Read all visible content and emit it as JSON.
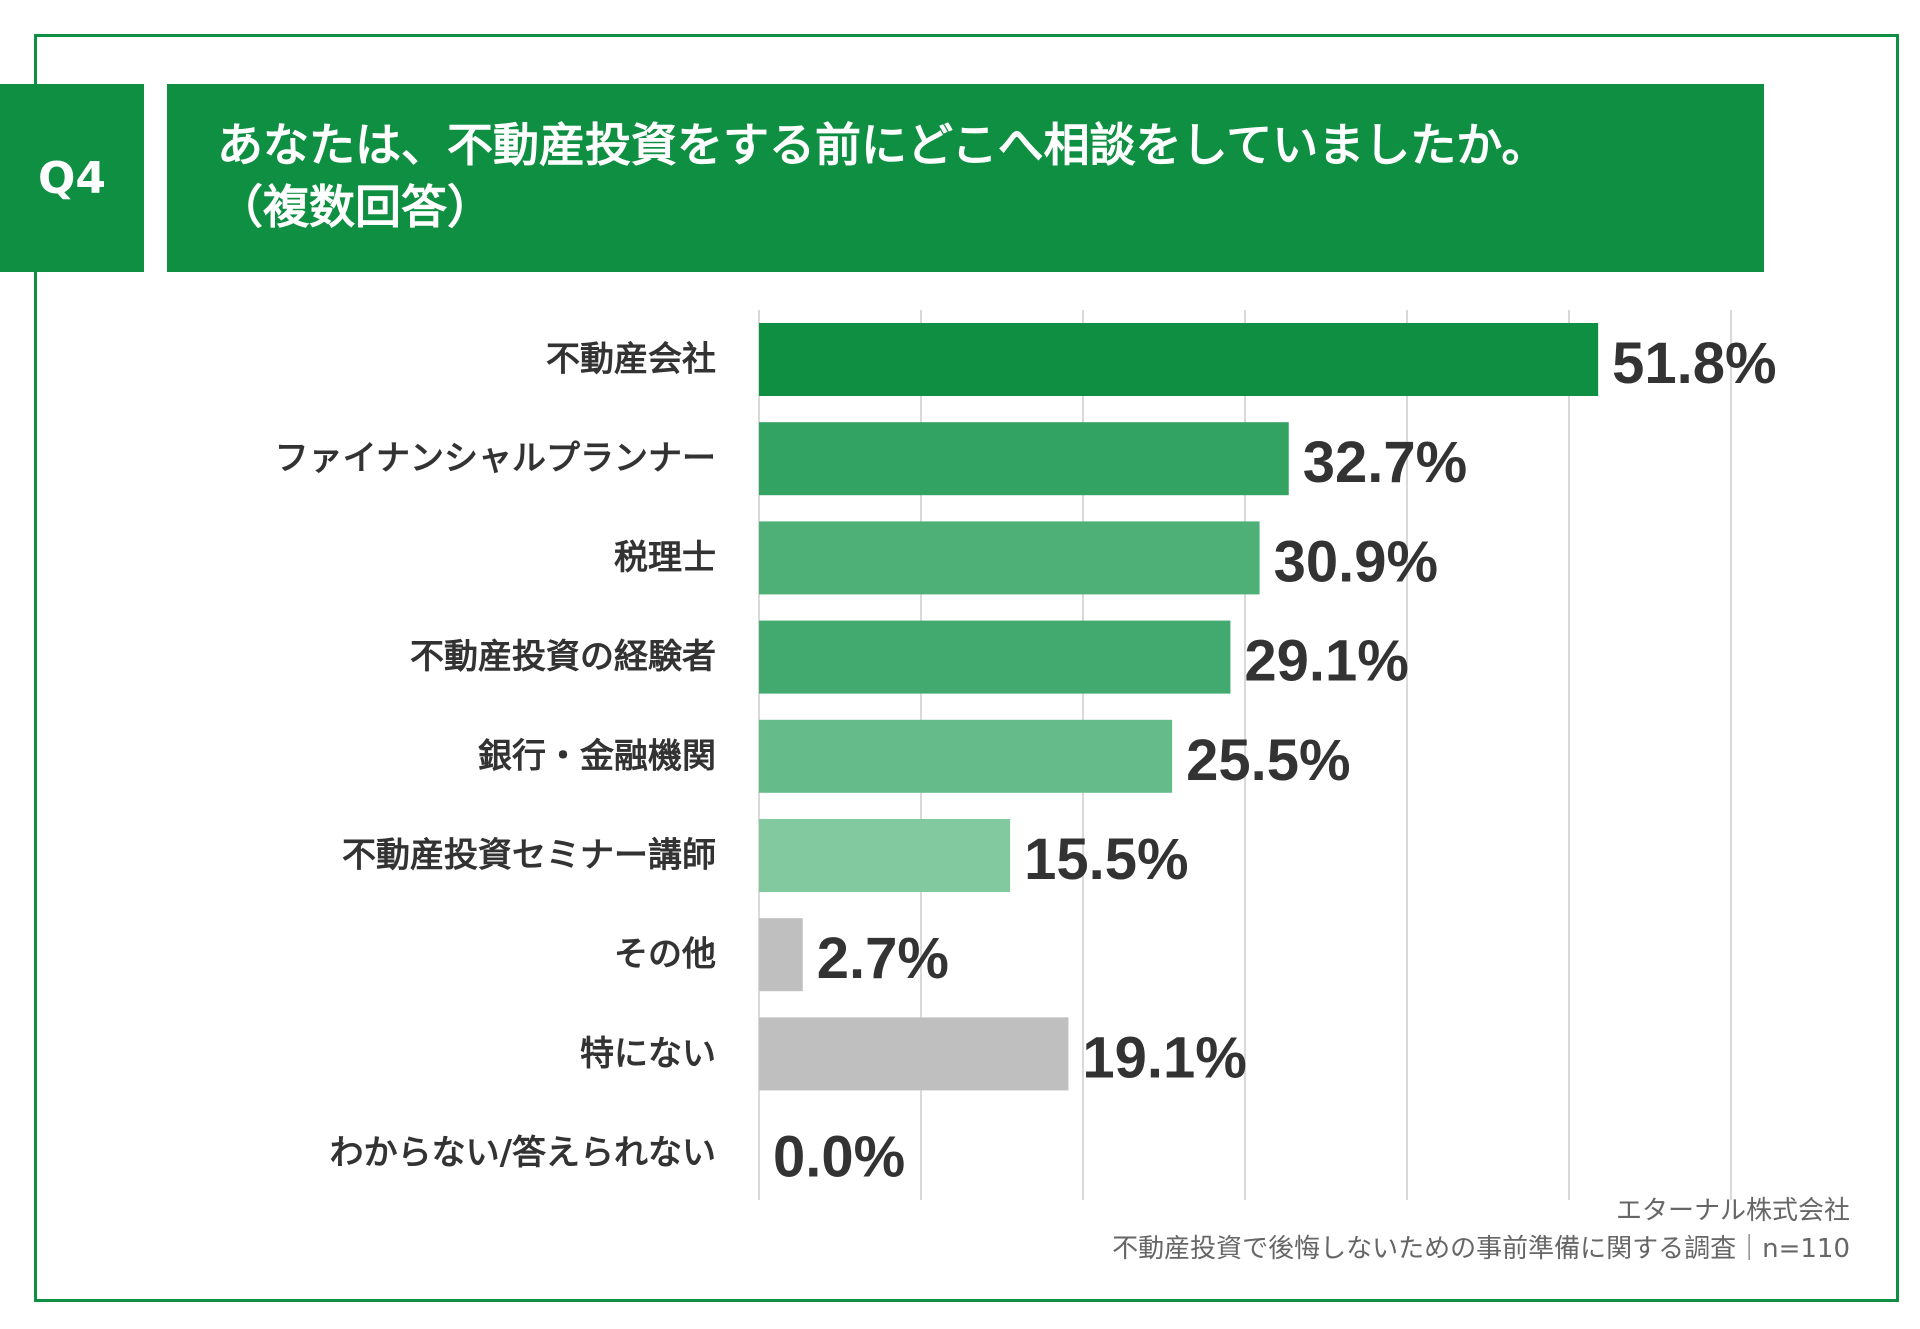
{
  "question_label": "Q4",
  "title_line1": "あなたは、不動産投資をする前にどこへ相談をしていましたか。",
  "title_line2": "（複数回答）",
  "credit_line1": "エターナル株式会社",
  "credit_line2": "不動産投資で後悔しないための事前準備に関する調査｜n=110",
  "colors": {
    "brand": "#0e8f42",
    "gray": "#bfbfbf"
  },
  "chart_data": {
    "type": "bar",
    "orientation": "horizontal",
    "categories": [
      "不動産会社",
      "ファイナンシャルプランナー",
      "税理士",
      "不動産投資の経験者",
      "銀行・金融機関",
      "不動産投資セミナー講師",
      "その他",
      "特にない",
      "わからない/答えられない"
    ],
    "values": [
      51.8,
      32.7,
      30.9,
      29.1,
      25.5,
      15.5,
      2.7,
      19.1,
      0.0
    ],
    "labels": [
      "51.8%",
      "32.7%",
      "30.9%",
      "29.1%",
      "25.5%",
      "15.5%",
      "2.7%",
      "19.1%",
      "0.0%"
    ],
    "bar_colors": [
      "#0e8f42",
      "#33a363",
      "#4eb077",
      "#42aa6e",
      "#66bb8a",
      "#83c9a0",
      "#bfbfbf",
      "#bfbfbf",
      "#bfbfbf"
    ],
    "xlim": [
      0,
      60
    ],
    "grid": true
  }
}
